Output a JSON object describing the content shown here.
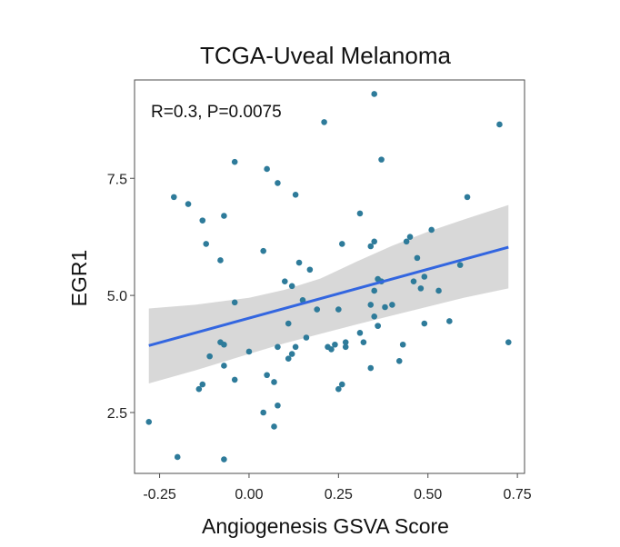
{
  "chart_data": {
    "type": "scatter",
    "title": "TCGA-Uveal Melanoma",
    "xlabel": "Angiogenesis GSVA Score",
    "ylabel": "EGR1",
    "annotation": "R=0.3, P=0.0075",
    "xlim": [
      -0.32,
      0.77
    ],
    "ylim": [
      1.2,
      9.6
    ],
    "xticks": [
      -0.25,
      0.0,
      0.25,
      0.5,
      0.75
    ],
    "xtick_labels": [
      "-0.25",
      "0.00",
      "0.25",
      "0.50",
      "0.75"
    ],
    "yticks": [
      2.5,
      5.0,
      7.5
    ],
    "ytick_labels": [
      "2.5",
      "5.0",
      "7.5"
    ],
    "colors": {
      "point": "#2e7b9a",
      "line": "#3366e0",
      "band": "#d6d6d6"
    },
    "regression": {
      "x": [
        -0.28,
        0.725
      ],
      "y": [
        3.93,
        6.03
      ]
    },
    "confidence_band": {
      "x": [
        -0.28,
        -0.15,
        0.0,
        0.1,
        0.2,
        0.3,
        0.4,
        0.5,
        0.6,
        0.725
      ],
      "upper": [
        4.72,
        4.8,
        4.95,
        5.12,
        5.36,
        5.72,
        6.06,
        6.36,
        6.62,
        6.93
      ],
      "lower": [
        3.12,
        3.4,
        3.75,
        3.98,
        4.18,
        4.38,
        4.57,
        4.76,
        4.95,
        5.15
      ]
    },
    "x": [
      -0.28,
      -0.2,
      -0.21,
      -0.17,
      -0.14,
      -0.13,
      -0.13,
      -0.12,
      -0.11,
      -0.08,
      -0.08,
      -0.07,
      -0.07,
      -0.07,
      -0.07,
      -0.04,
      -0.04,
      -0.04,
      0.0,
      0.04,
      0.04,
      0.05,
      0.05,
      0.07,
      0.07,
      0.08,
      0.08,
      0.08,
      0.1,
      0.11,
      0.11,
      0.12,
      0.12,
      0.13,
      0.13,
      0.14,
      0.15,
      0.16,
      0.17,
      0.19,
      0.21,
      0.22,
      0.23,
      0.24,
      0.25,
      0.25,
      0.26,
      0.26,
      0.27,
      0.27,
      0.31,
      0.31,
      0.32,
      0.34,
      0.34,
      0.34,
      0.35,
      0.35,
      0.35,
      0.35,
      0.36,
      0.36,
      0.36,
      0.37,
      0.37,
      0.38,
      0.4,
      0.42,
      0.43,
      0.44,
      0.45,
      0.46,
      0.47,
      0.48,
      0.49,
      0.49,
      0.51,
      0.53,
      0.56,
      0.59,
      0.61,
      0.7,
      0.725
    ],
    "y": [
      2.3,
      1.55,
      7.1,
      6.95,
      3.0,
      3.1,
      6.6,
      6.1,
      3.7,
      5.75,
      4.0,
      3.95,
      3.5,
      1.5,
      6.7,
      7.85,
      4.85,
      3.2,
      3.8,
      5.95,
      2.5,
      3.3,
      7.7,
      2.2,
      3.15,
      2.65,
      3.9,
      7.4,
      5.3,
      3.65,
      4.4,
      3.75,
      5.2,
      3.9,
      7.15,
      5.7,
      4.9,
      4.1,
      5.55,
      4.7,
      8.7,
      3.9,
      3.85,
      3.95,
      3.0,
      4.7,
      3.1,
      6.1,
      3.9,
      4.0,
      4.2,
      6.75,
      4.0,
      3.45,
      4.8,
      6.05,
      6.15,
      4.55,
      5.1,
      9.3,
      4.35,
      4.35,
      5.35,
      7.9,
      5.3,
      4.75,
      4.8,
      3.6,
      3.95,
      6.15,
      6.25,
      5.3,
      5.8,
      5.15,
      4.4,
      5.4,
      6.4,
      5.1,
      4.45,
      5.65,
      7.1,
      8.65,
      4.0
    ]
  }
}
